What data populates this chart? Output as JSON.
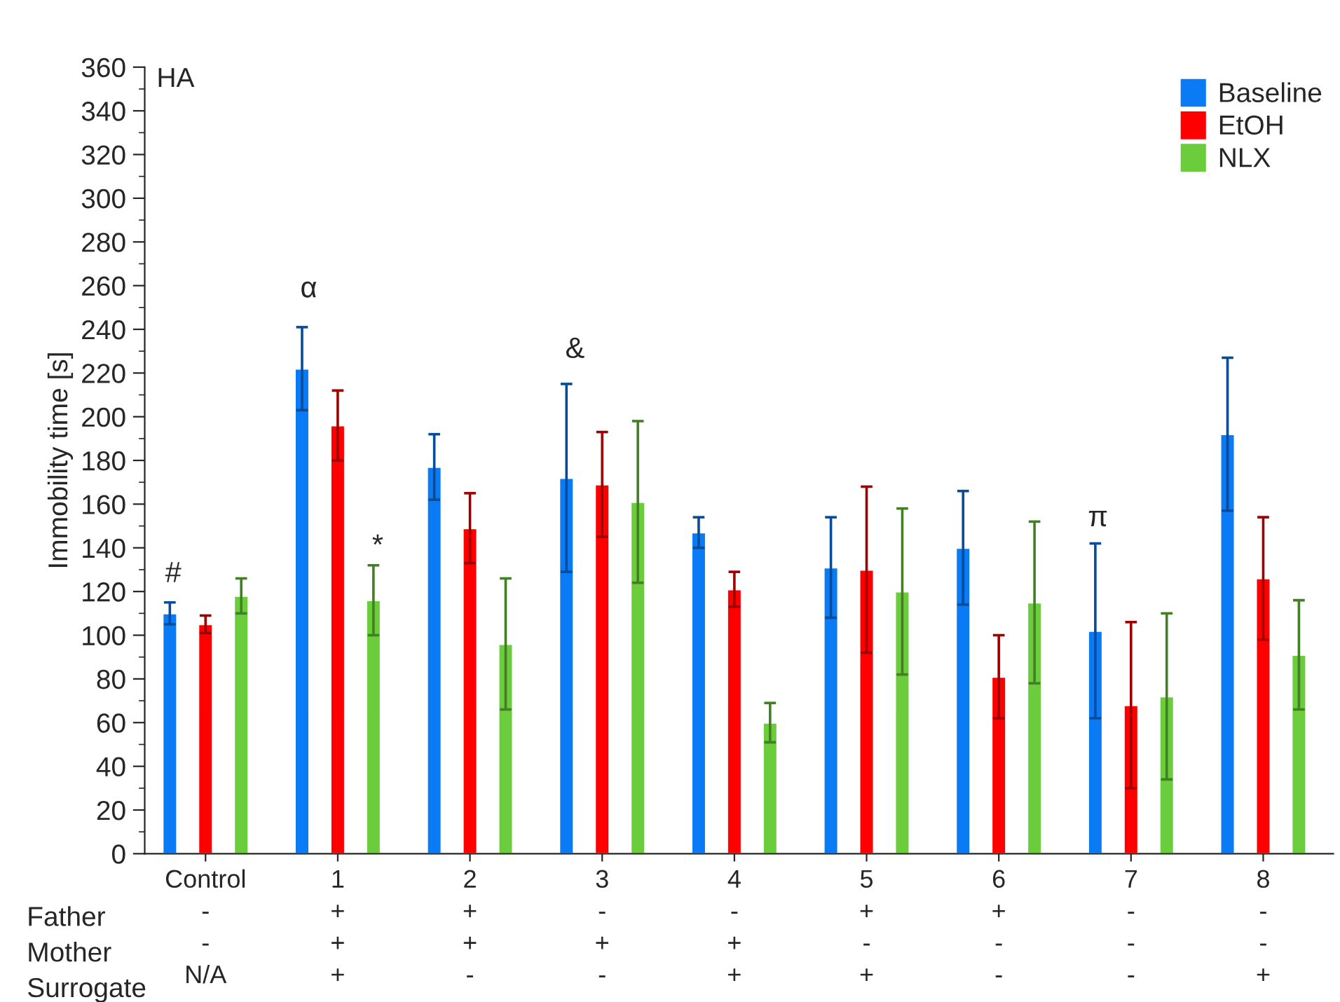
{
  "chart_data": {
    "type": "bar",
    "ylabel": "Immobility time [s]",
    "categories": [
      "Control\n-\n-\nN/A",
      "1\n+\n+\n+",
      "2\n+\n+\n-",
      "3\n-\n+\n-",
      "4\n-\n+\n+",
      "5\n+\n-\n+",
      "6\n+\n-\n-",
      "7\n-\n-\n-",
      "8\n-\n-\n+"
    ],
    "series": [
      {
        "name": "Baseline",
        "color": "#0a7bf5",
        "values": [
          110,
          222,
          177,
          172,
          147,
          131,
          140,
          102,
          192
        ],
        "errors": [
          5,
          19,
          15,
          43,
          7,
          23,
          26,
          40,
          35
        ]
      },
      {
        "name": "EtOH",
        "color": "#ff0000",
        "values": [
          105,
          196,
          149,
          169,
          121,
          130,
          81,
          68,
          126
        ],
        "errors": [
          4,
          16,
          16,
          24,
          8,
          38,
          19,
          38,
          28
        ]
      },
      {
        "name": "NLX",
        "color": "#6ccd3c",
        "values": [
          118,
          116,
          96,
          161,
          60,
          120,
          115,
          72,
          91
        ],
        "errors": [
          8,
          16,
          30,
          37,
          9,
          38,
          37,
          38,
          25
        ]
      }
    ],
    "ylim": [
      0,
      360
    ],
    "yticks": [
      0,
      20,
      40,
      60,
      80,
      100,
      120,
      140,
      160,
      180,
      200,
      220,
      240,
      260,
      280,
      300,
      320,
      340,
      360
    ],
    "annotations": [
      "HA",
      "#",
      "α",
      "*",
      "&",
      "π",
      "Father",
      "Mother",
      "Surrogate"
    ],
    "legend": "top right",
    "grid": false
  }
}
